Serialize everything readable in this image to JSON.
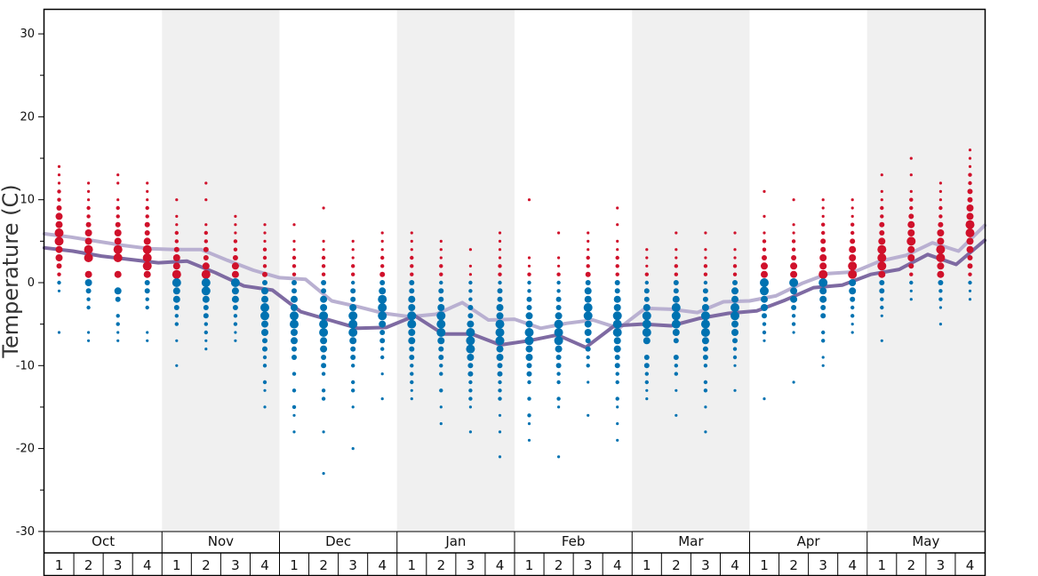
{
  "chart_data": {
    "type": "scatter",
    "title": "",
    "ylabel": "Temperature (C)",
    "xlabel": "",
    "ylim": [
      -30,
      33
    ],
    "yticks": [
      -30,
      -20,
      -10,
      0,
      10,
      20,
      30
    ],
    "months": [
      "Oct",
      "Nov",
      "Dec",
      "Jan",
      "Feb",
      "Mar",
      "Apr",
      "May"
    ],
    "week_labels": [
      "1",
      "2",
      "3",
      "4"
    ],
    "colors": {
      "warm_dot": "#d0112b",
      "cold_dot": "#0072b1",
      "upper_line": "#b9b0d1",
      "lower_line": "#7e6aa2",
      "band_shade": "#f0f0f0",
      "frame": "#000000"
    },
    "series": [
      {
        "values": [
          5.9,
          5.5,
          5.0,
          4.5,
          4.1,
          4.0,
          4.0,
          2.7,
          1.5,
          0.6,
          0.4,
          -2.2,
          -2.9,
          -3.7,
          -4.1,
          -3.8,
          -2.4,
          -4.5,
          -4.4,
          -5.5,
          -4.9,
          -4.5,
          -5.5,
          -3.1,
          -3.2,
          -3.6,
          -2.3,
          -2.2,
          -1.6,
          -0.1,
          1.1,
          1.3,
          2.6,
          3.3,
          4.8,
          3.8,
          6.9
        ]
      },
      {
        "values": [
          4.2,
          3.8,
          3.2,
          2.8,
          2.4,
          2.6,
          1.2,
          -0.4,
          -0.9,
          -3.5,
          -4.5,
          -5.5,
          -5.4,
          -4.0,
          -6.2,
          -6.2,
          -7.5,
          -7.0,
          -6.3,
          -7.8,
          -5.2,
          -5.0,
          -5.2,
          -4.3,
          -3.7,
          -3.4,
          -2.1,
          -0.6,
          -0.3,
          1.0,
          1.6,
          3.4,
          2.2,
          5.1
        ]
      }
    ],
    "dot_observations": [
      {
        "month": "Oct",
        "week": 1,
        "values": [
          14,
          13,
          12,
          11,
          10,
          9,
          8,
          7,
          6,
          5,
          4,
          3,
          2,
          1,
          0,
          -1,
          -6
        ]
      },
      {
        "month": "Oct",
        "week": 2,
        "values": [
          12,
          11,
          10,
          9,
          8,
          7,
          6,
          5,
          4,
          3,
          1,
          0,
          -1,
          -2,
          -3,
          -6,
          -7
        ]
      },
      {
        "month": "Oct",
        "week": 3,
        "values": [
          13,
          12,
          10,
          9,
          8,
          7,
          6,
          5,
          4,
          3,
          1,
          -1,
          -2,
          -4,
          -5,
          -6,
          -7
        ]
      },
      {
        "month": "Oct",
        "week": 4,
        "values": [
          12,
          11,
          10,
          9,
          8,
          7,
          6,
          5,
          4,
          3,
          2,
          1,
          0,
          -1,
          -2,
          -3,
          -6,
          -7
        ]
      },
      {
        "month": "Nov",
        "week": 1,
        "values": [
          10,
          8,
          7,
          6,
          5,
          4,
          3,
          2,
          1,
          0,
          -1,
          -2,
          -3,
          -4,
          -5,
          -7,
          -10
        ]
      },
      {
        "month": "Nov",
        "week": 2,
        "values": [
          12,
          10,
          7,
          6,
          5,
          4,
          3,
          2,
          1,
          0,
          -1,
          -2,
          -3,
          -4,
          -5,
          -6,
          -7,
          -8
        ]
      },
      {
        "month": "Nov",
        "week": 3,
        "values": [
          8,
          7,
          6,
          5,
          4,
          3,
          2,
          1,
          0,
          -1,
          -2,
          -3,
          -4,
          -5,
          -6,
          -7
        ]
      },
      {
        "month": "Nov",
        "week": 4,
        "values": [
          7,
          6,
          5,
          4,
          3,
          2,
          1,
          0,
          -1,
          -2,
          -3,
          -4,
          -5,
          -6,
          -7,
          -8,
          -9,
          -10,
          -12,
          -13,
          -15
        ]
      },
      {
        "month": "Dec",
        "week": 1,
        "values": [
          7,
          5,
          4,
          3,
          2,
          1,
          0,
          -1,
          -2,
          -3,
          -4,
          -5,
          -6,
          -7,
          -8,
          -9,
          -11,
          -13,
          -15,
          -16,
          -18
        ]
      },
      {
        "month": "Dec",
        "week": 2,
        "values": [
          9,
          5,
          4,
          3,
          2,
          1,
          0,
          -1,
          -2,
          -3,
          -4,
          -5,
          -6,
          -7,
          -8,
          -9,
          -10,
          -11,
          -13,
          -14,
          -18,
          -23
        ]
      },
      {
        "month": "Dec",
        "week": 3,
        "values": [
          5,
          4,
          3,
          2,
          1,
          0,
          -1,
          -2,
          -3,
          -4,
          -5,
          -6,
          -7,
          -8,
          -9,
          -10,
          -12,
          -13,
          -15,
          -20
        ]
      },
      {
        "month": "Dec",
        "week": 4,
        "values": [
          6,
          5,
          4,
          3,
          2,
          1,
          0,
          -1,
          -2,
          -3,
          -4,
          -5,
          -6,
          -7,
          -8,
          -9,
          -11,
          -14
        ]
      },
      {
        "month": "Jan",
        "week": 1,
        "values": [
          6,
          5,
          4,
          3,
          2,
          1,
          0,
          -1,
          -2,
          -3,
          -4,
          -5,
          -6,
          -7,
          -8,
          -9,
          -10,
          -11,
          -12,
          -13,
          -14
        ]
      },
      {
        "month": "Jan",
        "week": 2,
        "values": [
          5,
          4,
          3,
          2,
          1,
          0,
          -1,
          -2,
          -3,
          -4,
          -5,
          -6,
          -7,
          -8,
          -9,
          -10,
          -11,
          -13,
          -15,
          -17
        ]
      },
      {
        "month": "Jan",
        "week": 3,
        "values": [
          4,
          2,
          1,
          0,
          -1,
          -2,
          -3,
          -4,
          -5,
          -6,
          -7,
          -8,
          -9,
          -10,
          -11,
          -12,
          -13,
          -14,
          -15,
          -18
        ]
      },
      {
        "month": "Jan",
        "week": 4,
        "values": [
          6,
          5,
          4,
          3,
          2,
          1,
          0,
          -1,
          -2,
          -3,
          -4,
          -5,
          -6,
          -7,
          -8,
          -9,
          -10,
          -11,
          -12,
          -13,
          -14,
          -16,
          -18,
          -21
        ]
      },
      {
        "month": "Feb",
        "week": 1,
        "values": [
          10,
          3,
          2,
          1,
          0,
          -1,
          -2,
          -3,
          -4,
          -5,
          -6,
          -7,
          -8,
          -9,
          -10,
          -11,
          -12,
          -14,
          -16,
          -17,
          -19
        ]
      },
      {
        "month": "Feb",
        "week": 2,
        "values": [
          6,
          3,
          2,
          1,
          0,
          -1,
          -2,
          -3,
          -4,
          -5,
          -6,
          -7,
          -8,
          -9,
          -10,
          -11,
          -12,
          -14,
          -15,
          -21
        ]
      },
      {
        "month": "Feb",
        "week": 3,
        "values": [
          6,
          5,
          4,
          3,
          2,
          1,
          0,
          -1,
          -2,
          -3,
          -4,
          -5,
          -6,
          -7,
          -8,
          -9,
          -10,
          -12,
          -16
        ]
      },
      {
        "month": "Feb",
        "week": 4,
        "values": [
          9,
          7,
          5,
          4,
          3,
          2,
          1,
          0,
          -1,
          -2,
          -3,
          -4,
          -5,
          -6,
          -7,
          -8,
          -9,
          -10,
          -11,
          -12,
          -14,
          -15,
          -17,
          -19
        ]
      },
      {
        "month": "Mar",
        "week": 1,
        "values": [
          4,
          3,
          2,
          1,
          0,
          -1,
          -2,
          -3,
          -4,
          -5,
          -6,
          -7,
          -9,
          -10,
          -11,
          -12,
          -13,
          -14
        ]
      },
      {
        "month": "Mar",
        "week": 2,
        "values": [
          6,
          4,
          3,
          2,
          1,
          0,
          -1,
          -2,
          -3,
          -4,
          -5,
          -6,
          -7,
          -9,
          -10,
          -11,
          -13,
          -16
        ]
      },
      {
        "month": "Mar",
        "week": 3,
        "values": [
          6,
          4,
          3,
          2,
          1,
          0,
          -1,
          -2,
          -3,
          -4,
          -5,
          -6,
          -7,
          -8,
          -9,
          -10,
          -12,
          -13,
          -15,
          -18
        ]
      },
      {
        "month": "Mar",
        "week": 4,
        "values": [
          6,
          4,
          3,
          2,
          1,
          0,
          -1,
          -2,
          -3,
          -4,
          -5,
          -6,
          -7,
          -8,
          -9,
          -10,
          -13
        ]
      },
      {
        "month": "Apr",
        "week": 1,
        "values": [
          11,
          8,
          6,
          5,
          4,
          3,
          2,
          1,
          0,
          -1,
          -2,
          -3,
          -4,
          -5,
          -6,
          -7,
          -14
        ]
      },
      {
        "month": "Apr",
        "week": 2,
        "values": [
          10,
          7,
          6,
          5,
          4,
          3,
          2,
          1,
          0,
          -1,
          -2,
          -3,
          -4,
          -5,
          -6,
          -12
        ]
      },
      {
        "month": "Apr",
        "week": 3,
        "values": [
          10,
          9,
          8,
          7,
          6,
          5,
          4,
          3,
          2,
          1,
          0,
          -1,
          -2,
          -3,
          -4,
          -6,
          -7,
          -9,
          -10
        ]
      },
      {
        "month": "Apr",
        "week": 4,
        "values": [
          10,
          9,
          8,
          7,
          6,
          5,
          4,
          3,
          2,
          1,
          0,
          -1,
          -2,
          -3,
          -4,
          -5,
          -6
        ]
      },
      {
        "month": "May",
        "week": 1,
        "values": [
          13,
          11,
          10,
          9,
          8,
          7,
          6,
          5,
          4,
          3,
          2,
          1,
          0,
          -1,
          -2,
          -3,
          -4,
          -7
        ]
      },
      {
        "month": "May",
        "week": 2,
        "values": [
          15,
          13,
          11,
          10,
          9,
          8,
          7,
          6,
          5,
          4,
          3,
          2,
          1,
          0,
          -1,
          -2
        ]
      },
      {
        "month": "May",
        "week": 3,
        "values": [
          12,
          11,
          10,
          9,
          8,
          7,
          6,
          5,
          4,
          3,
          2,
          1,
          0,
          -1,
          -2,
          -3,
          -5
        ]
      },
      {
        "month": "May",
        "week": 4,
        "values": [
          16,
          15,
          14,
          13,
          12,
          11,
          10,
          9,
          8,
          7,
          6,
          5,
          4,
          3,
          2,
          1,
          0,
          -1,
          -2
        ]
      }
    ],
    "legend": "none",
    "grid": false
  }
}
